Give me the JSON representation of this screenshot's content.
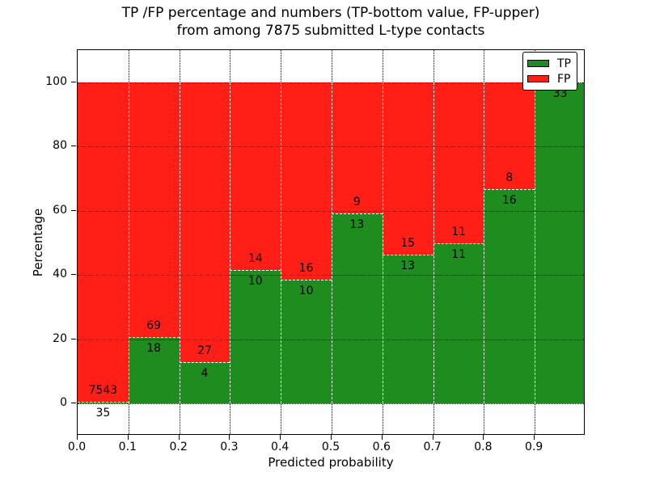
{
  "figure": {
    "title_line1": "TP /FP percentage and numbers (TP-bottom value, FP-upper)",
    "title_line2": "from among 7875 submitted L-type contacts"
  },
  "chart_data": {
    "type": "bar",
    "subtype": "stacked-percentage-histogram",
    "title": "TP /FP percentage and numbers (TP-bottom value, FP-upper) from among 7875 submitted L-type contacts",
    "xlabel": "Predicted probability",
    "ylabel": "Percentage",
    "total_contacts": 7875,
    "bin_width": 0.1,
    "categories": [
      "0.0-0.1",
      "0.1-0.2",
      "0.2-0.3",
      "0.3-0.4",
      "0.4-0.5",
      "0.5-0.6",
      "0.6-0.7",
      "0.7-0.8",
      "0.8-0.9",
      "0.9-1.0"
    ],
    "series": [
      {
        "name": "TP",
        "color": "#1e8c1e",
        "values": [
          35,
          18,
          4,
          10,
          10,
          13,
          13,
          11,
          16,
          33
        ]
      },
      {
        "name": "FP",
        "color": "#ff1f16",
        "values": [
          7543,
          69,
          27,
          14,
          16,
          9,
          15,
          11,
          8,
          0
        ]
      }
    ],
    "tp_percent": [
      0.46,
      20.69,
      12.9,
      41.67,
      38.46,
      59.09,
      46.43,
      50.0,
      66.67,
      100.0
    ],
    "x_tick_labels": [
      "0.0",
      "0.1",
      "0.2",
      "0.3",
      "0.4",
      "0.5",
      "0.6",
      "0.7",
      "0.8",
      "0.9"
    ],
    "y_ticks": [
      0,
      20,
      40,
      60,
      80,
      100
    ],
    "y_tick_labels": [
      "0",
      "20",
      "40",
      "60",
      "80",
      "100"
    ],
    "xlim": [
      0.0,
      1.0
    ],
    "ylim": [
      -10,
      110
    ],
    "grid": "dotted",
    "bar_edge_style": "white-dashed",
    "label_convention": "FP count printed above TP/FP boundary, TP count printed below",
    "legend": {
      "position": "upper-right",
      "entries": [
        {
          "label": "TP",
          "color": "#1e8c1e"
        },
        {
          "label": "FP",
          "color": "#ff1f16"
        }
      ]
    }
  }
}
